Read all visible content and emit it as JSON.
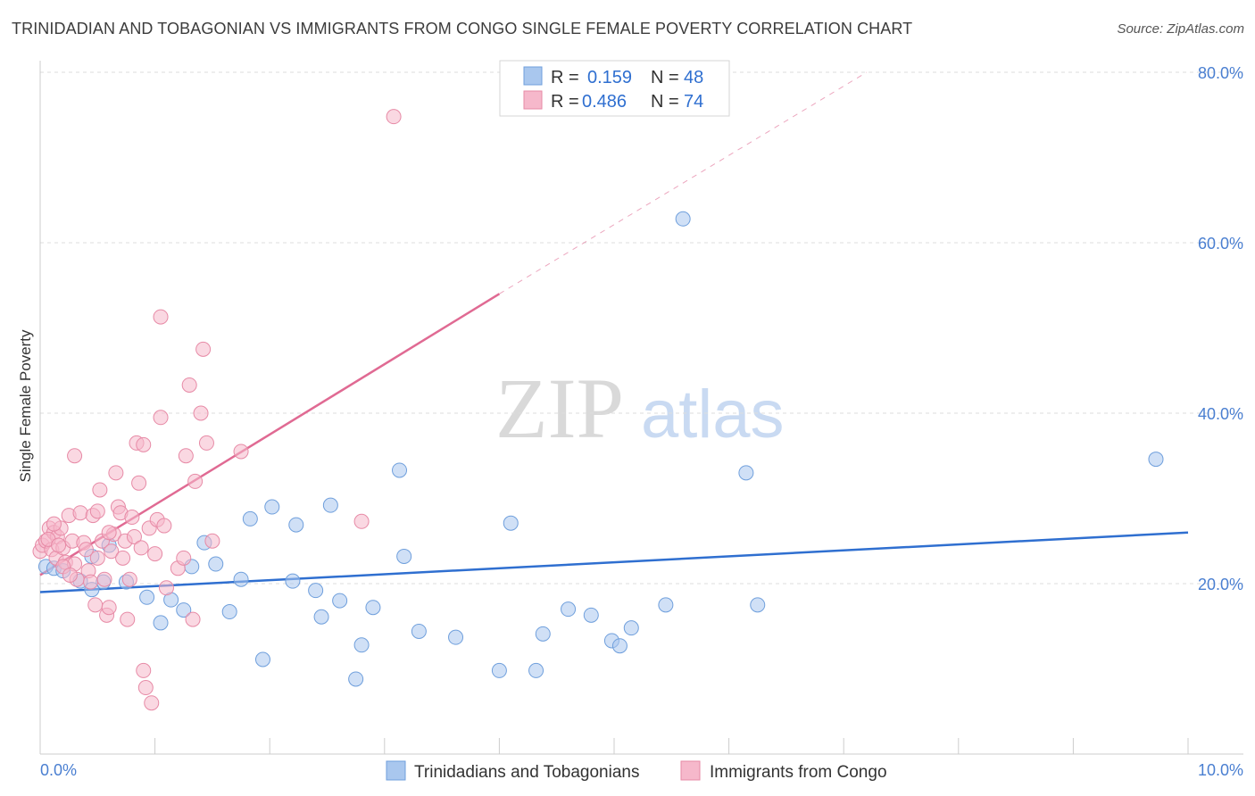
{
  "title": "TRINIDADIAN AND TOBAGONIAN VS IMMIGRANTS FROM CONGO SINGLE FEMALE POVERTY CORRELATION CHART",
  "source": "Source: ZipAtlas.com",
  "watermark": {
    "zip": "ZIP",
    "atlas": "atlas"
  },
  "colors": {
    "blue_fill": "#a9c7ee",
    "blue_stroke": "#6f9fdc",
    "blue_line": "#2f6fd0",
    "pink_fill": "#f6b8cb",
    "pink_stroke": "#e78aa6",
    "pink_line": "#e06a93",
    "grid": "#dddddd",
    "tick_text": "#4a7fd1"
  },
  "legend": {
    "rows": [
      {
        "r_label": "R =",
        "r_value": "0.159",
        "n_label": "N =",
        "n_value": "48"
      },
      {
        "r_label": "R =",
        "r_value": "0.486",
        "n_label": "N =",
        "n_value": "74"
      }
    ]
  },
  "bottom_legend": {
    "series1": "Trinidadians and Tobagonians",
    "series2": "Immigrants from Congo"
  },
  "chart_data": {
    "type": "scatter",
    "title": "TRINIDADIAN AND TOBAGONIAN VS IMMIGRANTS FROM CONGO SINGLE FEMALE POVERTY CORRELATION CHART",
    "xlabel": "",
    "ylabel": "Single Female Poverty",
    "xlim": [
      0,
      10
    ],
    "ylim": [
      0,
      80
    ],
    "x_tick_labels": [
      {
        "value": 0,
        "label": "0.0%"
      },
      {
        "value": 10,
        "label": "10.0%"
      }
    ],
    "y_tick_labels": [
      {
        "value": 20,
        "label": "20.0%"
      },
      {
        "value": 40,
        "label": "40.0%"
      },
      {
        "value": 60,
        "label": "60.0%"
      },
      {
        "value": 80,
        "label": "80.0%"
      }
    ],
    "x_minor_ticks": [
      1,
      2,
      3,
      4,
      5,
      6,
      7,
      8,
      9,
      10
    ],
    "y_gridlines": [
      20,
      40,
      60,
      80
    ],
    "series": [
      {
        "name": "Trinidadians and Tobagonians",
        "color": "blue",
        "R": 0.159,
        "N": 48,
        "trend": {
          "x0": 0,
          "y0": 19.0,
          "x1": 10,
          "y1": 26.0
        },
        "points": [
          [
            0.05,
            22.0
          ],
          [
            0.12,
            21.8
          ],
          [
            0.2,
            21.5
          ],
          [
            0.35,
            20.3
          ],
          [
            0.55,
            20.2
          ],
          [
            0.6,
            24.5
          ],
          [
            0.45,
            19.3
          ],
          [
            0.75,
            20.2
          ],
          [
            0.93,
            18.4
          ],
          [
            1.14,
            18.1
          ],
          [
            1.25,
            16.9
          ],
          [
            1.05,
            15.4
          ],
          [
            1.32,
            22.0
          ],
          [
            1.43,
            24.8
          ],
          [
            1.53,
            22.3
          ],
          [
            1.65,
            16.7
          ],
          [
            1.75,
            20.5
          ],
          [
            1.83,
            27.6
          ],
          [
            1.94,
            11.1
          ],
          [
            2.02,
            29.0
          ],
          [
            2.2,
            20.3
          ],
          [
            2.23,
            26.9
          ],
          [
            2.4,
            19.2
          ],
          [
            2.45,
            16.1
          ],
          [
            2.53,
            29.2
          ],
          [
            2.61,
            18.0
          ],
          [
            2.75,
            8.8
          ],
          [
            2.8,
            12.8
          ],
          [
            2.9,
            17.2
          ],
          [
            3.13,
            33.3
          ],
          [
            3.17,
            23.2
          ],
          [
            3.3,
            14.4
          ],
          [
            3.62,
            13.7
          ],
          [
            4.0,
            9.8
          ],
          [
            4.1,
            27.1
          ],
          [
            4.32,
            9.8
          ],
          [
            4.38,
            14.1
          ],
          [
            4.6,
            17.0
          ],
          [
            4.8,
            16.3
          ],
          [
            4.98,
            13.3
          ],
          [
            5.05,
            12.7
          ],
          [
            5.15,
            14.8
          ],
          [
            5.45,
            17.5
          ],
          [
            5.6,
            62.8
          ],
          [
            6.15,
            33.0
          ],
          [
            6.25,
            17.5
          ],
          [
            9.72,
            34.6
          ],
          [
            0.45,
            23.2
          ]
        ]
      },
      {
        "name": "Immigrants from Congo",
        "color": "pink",
        "R": 0.486,
        "N": 74,
        "trend": {
          "x0": 0,
          "y0": 21.0,
          "x1": 4.0,
          "y1": 54.0
        },
        "trend_extension": {
          "x0": 4.0,
          "y0": 54.0,
          "x1": 7.2,
          "y1": 80.0
        },
        "points": [
          [
            0.0,
            23.8
          ],
          [
            0.02,
            24.5
          ],
          [
            0.05,
            25.0
          ],
          [
            0.08,
            26.5
          ],
          [
            0.1,
            24.0
          ],
          [
            0.12,
            26.0
          ],
          [
            0.14,
            23.0
          ],
          [
            0.15,
            25.5
          ],
          [
            0.18,
            26.5
          ],
          [
            0.2,
            24.2
          ],
          [
            0.22,
            22.5
          ],
          [
            0.25,
            28.0
          ],
          [
            0.28,
            25.0
          ],
          [
            0.3,
            22.3
          ],
          [
            0.32,
            20.5
          ],
          [
            0.35,
            28.3
          ],
          [
            0.38,
            24.8
          ],
          [
            0.4,
            24.0
          ],
          [
            0.42,
            21.5
          ],
          [
            0.44,
            20.2
          ],
          [
            0.46,
            28.0
          ],
          [
            0.48,
            17.5
          ],
          [
            0.5,
            23.0
          ],
          [
            0.52,
            31.0
          ],
          [
            0.54,
            25.0
          ],
          [
            0.56,
            20.5
          ],
          [
            0.58,
            16.3
          ],
          [
            0.6,
            17.2
          ],
          [
            0.62,
            23.8
          ],
          [
            0.64,
            25.8
          ],
          [
            0.66,
            33.0
          ],
          [
            0.68,
            29.0
          ],
          [
            0.7,
            28.3
          ],
          [
            0.72,
            23.0
          ],
          [
            0.74,
            25.0
          ],
          [
            0.76,
            15.8
          ],
          [
            0.78,
            20.5
          ],
          [
            0.8,
            27.8
          ],
          [
            0.82,
            25.5
          ],
          [
            0.84,
            36.5
          ],
          [
            0.86,
            31.8
          ],
          [
            0.88,
            24.2
          ],
          [
            0.9,
            36.3
          ],
          [
            0.9,
            9.8
          ],
          [
            0.92,
            7.8
          ],
          [
            0.95,
            26.5
          ],
          [
            0.97,
            6.0
          ],
          [
            1.0,
            23.5
          ],
          [
            1.02,
            27.5
          ],
          [
            1.05,
            39.5
          ],
          [
            1.08,
            26.8
          ],
          [
            1.1,
            19.5
          ],
          [
            1.05,
            51.3
          ],
          [
            1.2,
            21.8
          ],
          [
            1.25,
            23.0
          ],
          [
            1.27,
            35.0
          ],
          [
            1.3,
            43.3
          ],
          [
            1.33,
            15.8
          ],
          [
            1.35,
            32.0
          ],
          [
            1.4,
            40.0
          ],
          [
            1.42,
            47.5
          ],
          [
            1.45,
            36.5
          ],
          [
            1.5,
            25.0
          ],
          [
            1.75,
            35.5
          ],
          [
            2.8,
            27.3
          ],
          [
            3.08,
            74.8
          ],
          [
            0.3,
            35.0
          ],
          [
            0.2,
            22.0
          ],
          [
            0.12,
            27.0
          ],
          [
            0.5,
            28.5
          ],
          [
            0.6,
            26.0
          ],
          [
            0.07,
            25.2
          ],
          [
            0.16,
            24.5
          ],
          [
            0.26,
            21.0
          ]
        ]
      }
    ]
  }
}
